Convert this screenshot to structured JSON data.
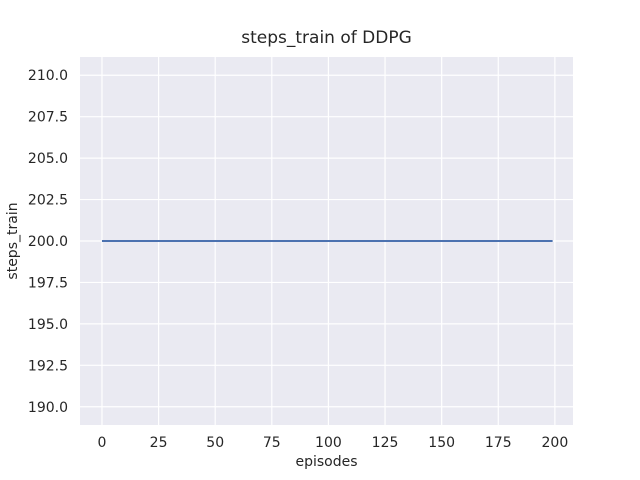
{
  "figure": {
    "background": "#ffffff"
  },
  "chart_data": {
    "type": "line",
    "title": "steps_train of DDPG",
    "xlabel": "episodes",
    "ylabel": "steps_train",
    "x_ticks": [
      0,
      25,
      50,
      75,
      100,
      125,
      150,
      175,
      200
    ],
    "x_tick_labels": [
      "0",
      "25",
      "50",
      "75",
      "100",
      "125",
      "150",
      "175",
      "200"
    ],
    "y_ticks": [
      190.0,
      192.5,
      195.0,
      197.5,
      200.0,
      202.5,
      205.0,
      207.5,
      210.0
    ],
    "y_tick_labels": [
      "190.0",
      "192.5",
      "195.0",
      "197.5",
      "200.0",
      "202.5",
      "205.0",
      "207.5",
      "210.0"
    ],
    "xlim": [
      -9.7,
      208.0
    ],
    "ylim": [
      188.9,
      211.1
    ],
    "grid": true,
    "legend": false,
    "plot_bg_color": "#eaeaf2",
    "grid_color": "#ffffff",
    "text_color": "#262626",
    "series": [
      {
        "name": "steps_train",
        "color": "#4c72b0",
        "x": [
          0,
          199
        ],
        "y": [
          200,
          200
        ]
      }
    ]
  }
}
